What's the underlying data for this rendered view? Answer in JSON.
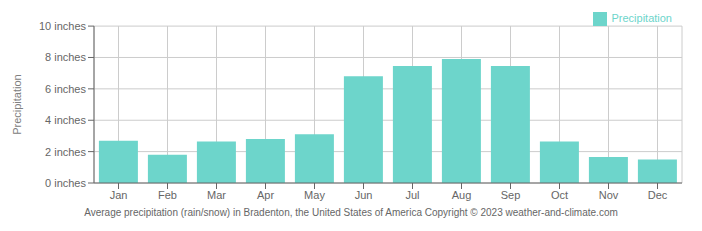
{
  "chart_data": {
    "type": "bar",
    "categories": [
      "Jan",
      "Feb",
      "Mar",
      "Apr",
      "May",
      "Jun",
      "Jul",
      "Aug",
      "Sep",
      "Oct",
      "Nov",
      "Dec"
    ],
    "series": [
      {
        "name": "Precipitation",
        "color": "#6dd5cb",
        "values": [
          2.7,
          1.8,
          2.65,
          2.8,
          3.1,
          6.8,
          7.45,
          7.9,
          7.45,
          2.65,
          1.65,
          1.5
        ]
      }
    ],
    "ylabel": "Precipitation",
    "ylim": [
      0,
      10
    ],
    "yticks": [
      {
        "value": 0,
        "label": "0 inches"
      },
      {
        "value": 2,
        "label": "2 inches"
      },
      {
        "value": 4,
        "label": "4 inches"
      },
      {
        "value": 6,
        "label": "6 inches"
      },
      {
        "value": 8,
        "label": "8 inches"
      },
      {
        "value": 10,
        "label": "10 inches"
      }
    ],
    "grid": true,
    "legend": "upper right",
    "annotations": [
      "Average precipitation (rain/snow) in Bradenton, the United States of America   Copyright © 2023  weather-and-climate.com"
    ]
  }
}
